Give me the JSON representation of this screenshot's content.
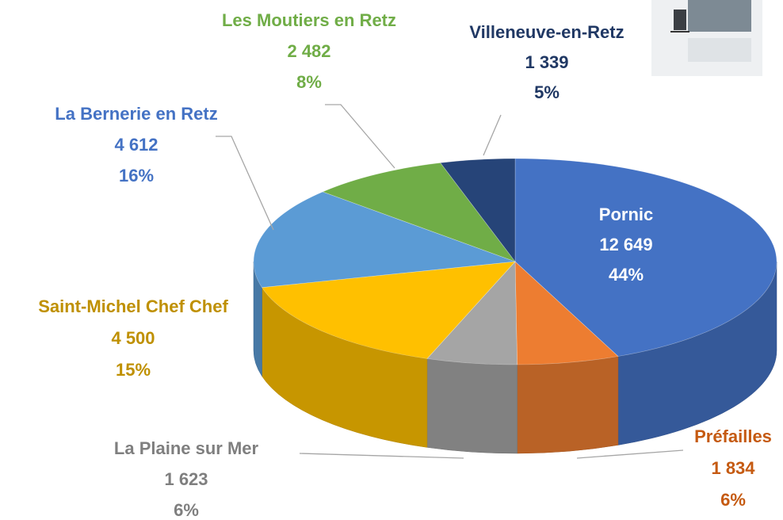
{
  "chart_data": {
    "type": "pie",
    "categories": [
      "Pornic",
      "Préfailles",
      "La Plaine sur Mer",
      "Saint-Michel Chef Chef",
      "La Bernerie en Retz",
      "Les Moutiers en Retz",
      "Villeneuve-en-Retz"
    ],
    "values": [
      12649,
      1834,
      1623,
      4500,
      4612,
      2482,
      1339
    ],
    "value_labels": [
      "12 649",
      "1 834",
      "1 623",
      "4 500",
      "4 612",
      "2 482",
      "1 339"
    ],
    "percents": [
      44,
      6,
      6,
      15,
      16,
      8,
      5
    ],
    "percent_labels": [
      "44%",
      "6%",
      "6%",
      "15%",
      "16%",
      "8%",
      "5%"
    ],
    "colors": [
      "#4472c4",
      "#ed7d31",
      "#a5a5a5",
      "#ffc000",
      "#5b9bd5",
      "#70ad47",
      "#264478"
    ],
    "label_colors": [
      "#ffffff",
      "#c55a11",
      "#7f7f7f",
      "#bf9000",
      "#4472c4",
      "#70ad47",
      "#203864"
    ]
  }
}
